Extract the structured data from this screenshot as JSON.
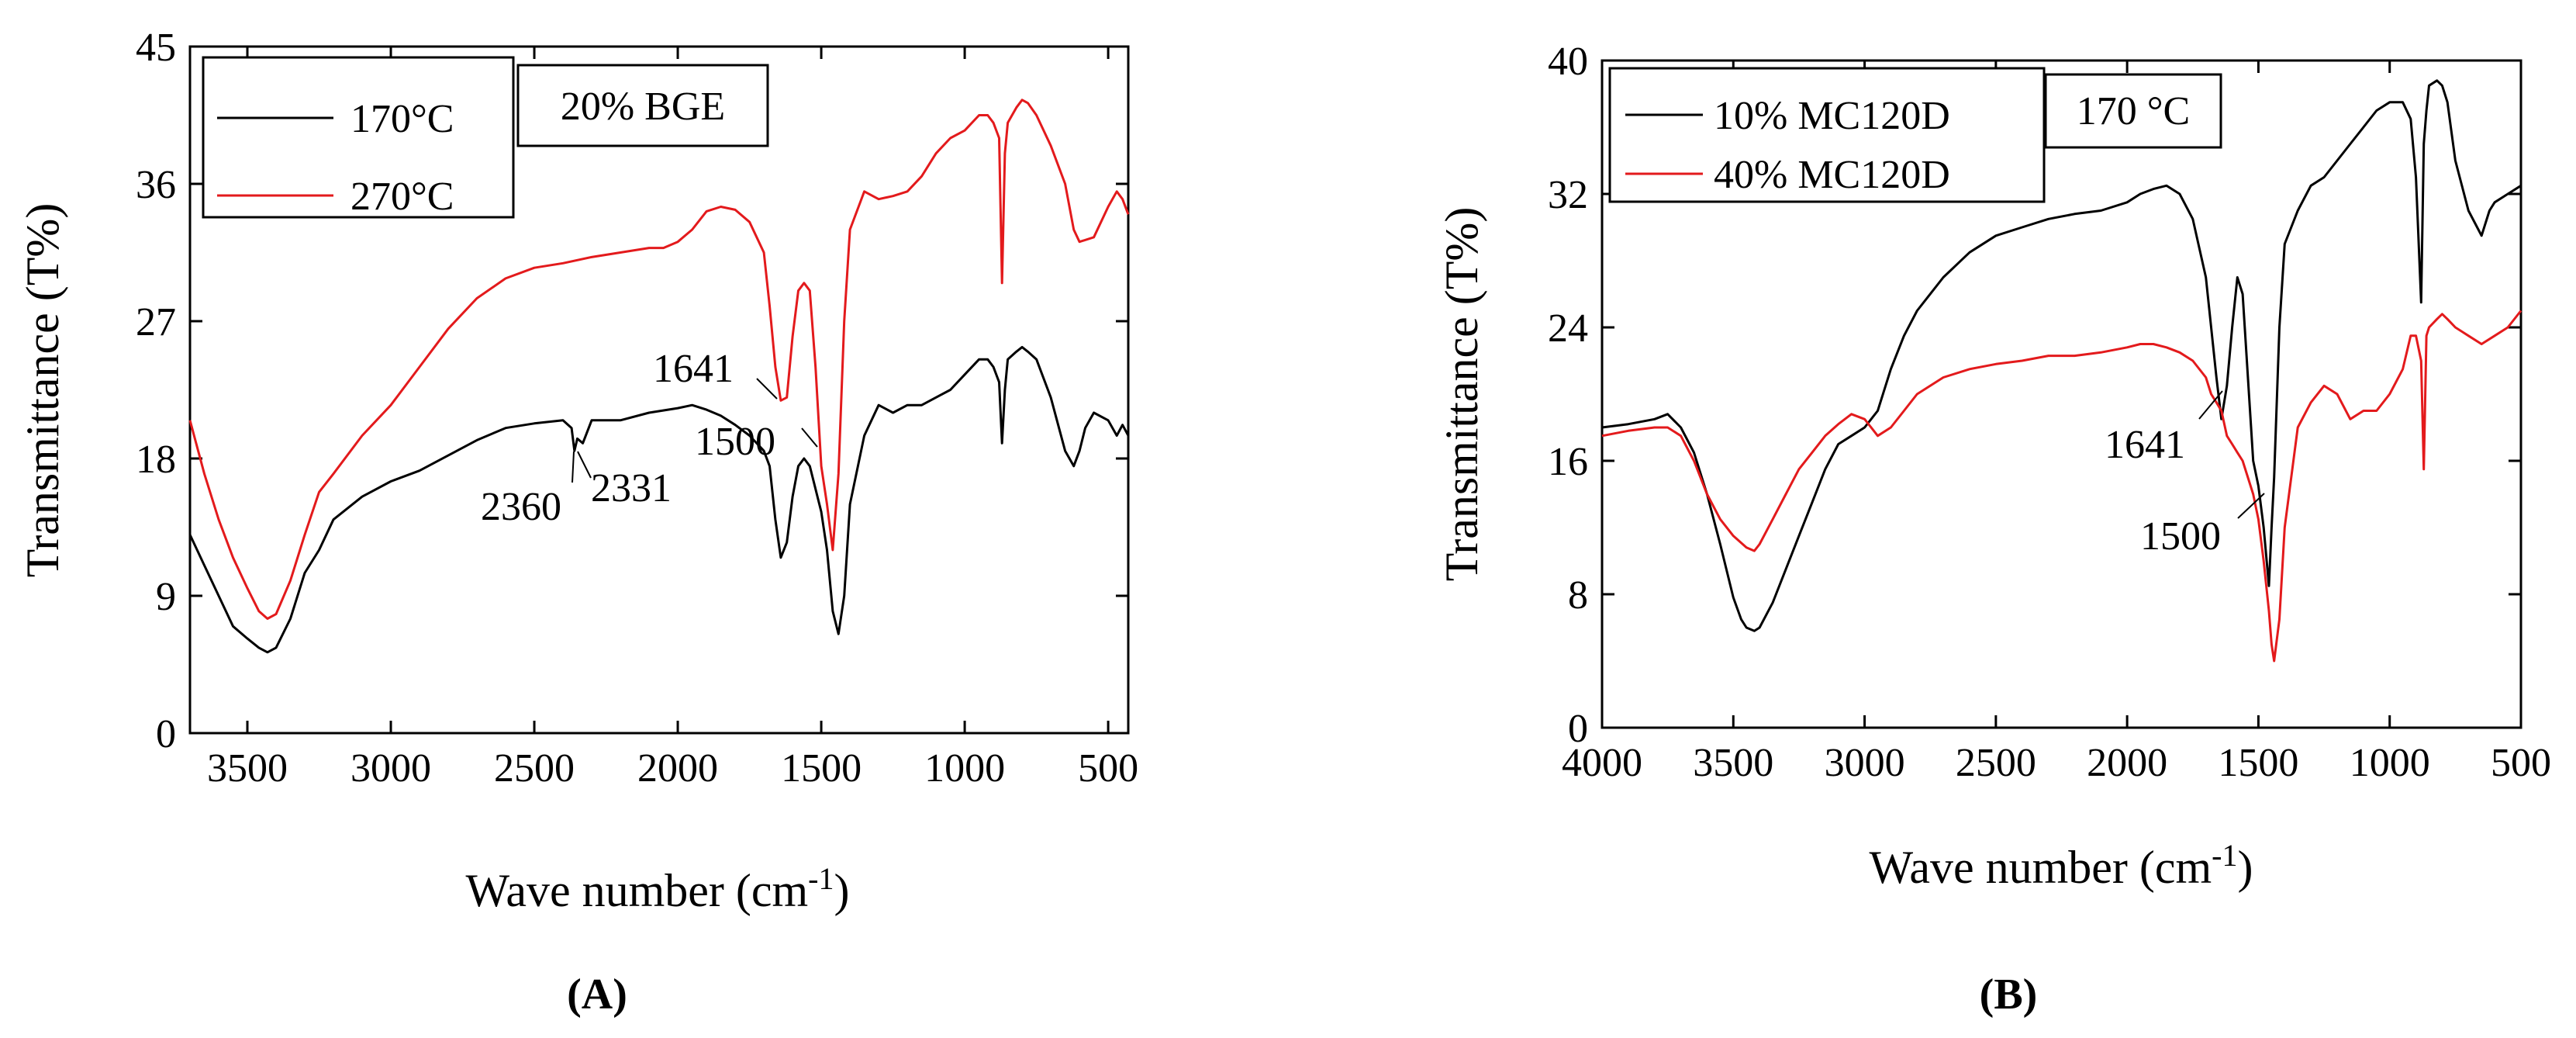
{
  "chart_data": [
    {
      "panel": "A",
      "type": "line",
      "panel_label": "(A)",
      "xlabel": "Wave number (cm",
      "xlabel_sup": "-1",
      "xlabel_close": ")",
      "ylabel": "Transmittance (T%)",
      "xlim": [
        3700,
        430
      ],
      "ylim": [
        0,
        45
      ],
      "xticks": [
        3500,
        3000,
        2500,
        2000,
        1500,
        1000,
        500
      ],
      "yticks": [
        0,
        9,
        18,
        27,
        36,
        45
      ],
      "condition_label": "20% BGE",
      "legend_position": "top-left",
      "series": [
        {
          "name": "170°C",
          "color": "#000000",
          "x": [
            3700,
            3650,
            3600,
            3550,
            3500,
            3460,
            3430,
            3400,
            3350,
            3300,
            3250,
            3200,
            3100,
            3000,
            2900,
            2800,
            2700,
            2600,
            2500,
            2400,
            2370,
            2360,
            2350,
            2331,
            2300,
            2200,
            2100,
            2000,
            1950,
            1900,
            1850,
            1800,
            1750,
            1700,
            1680,
            1660,
            1641,
            1620,
            1600,
            1580,
            1560,
            1540,
            1520,
            1500,
            1480,
            1460,
            1440,
            1420,
            1400,
            1350,
            1300,
            1250,
            1200,
            1150,
            1100,
            1050,
            1000,
            950,
            920,
            900,
            880,
            870,
            860,
            850,
            820,
            800,
            780,
            750,
            700,
            650,
            620,
            600,
            580,
            550,
            500,
            470,
            450,
            430
          ],
          "y": [
            13,
            11,
            9,
            7,
            6.2,
            5.6,
            5.3,
            5.6,
            7.5,
            10.5,
            12,
            14,
            15.5,
            16.5,
            17.2,
            18.2,
            19.2,
            20,
            20.3,
            20.5,
            20,
            18.5,
            19.3,
            19,
            20.5,
            20.5,
            21,
            21.3,
            21.5,
            21.2,
            20.8,
            20.2,
            19.5,
            18.5,
            17.5,
            14,
            11.5,
            12.5,
            15.5,
            17.5,
            18,
            17.5,
            16,
            14.5,
            12,
            8,
            6.5,
            9,
            15,
            19.5,
            21.5,
            21,
            21.5,
            21.5,
            22,
            22.5,
            23.5,
            24.5,
            24.5,
            24,
            23,
            19,
            22.5,
            24.5,
            25,
            25.3,
            25,
            24.5,
            22,
            18.5,
            17.5,
            18.5,
            20,
            21,
            20.5,
            19.5,
            20.2,
            19.5
          ]
        },
        {
          "name": "270°C",
          "color": "#e31a1c",
          "x": [
            3700,
            3650,
            3600,
            3550,
            3500,
            3460,
            3430,
            3400,
            3350,
            3300,
            3250,
            3200,
            3100,
            3000,
            2900,
            2800,
            2700,
            2600,
            2500,
            2400,
            2300,
            2200,
            2100,
            2050,
            2000,
            1950,
            1900,
            1850,
            1800,
            1750,
            1700,
            1680,
            1660,
            1641,
            1620,
            1600,
            1580,
            1560,
            1540,
            1520,
            1500,
            1480,
            1460,
            1440,
            1420,
            1400,
            1350,
            1300,
            1250,
            1200,
            1150,
            1100,
            1050,
            1000,
            950,
            920,
            900,
            880,
            870,
            860,
            850,
            820,
            800,
            780,
            750,
            700,
            650,
            620,
            600,
            550,
            500,
            470,
            450,
            430
          ],
          "y": [
            20.5,
            17,
            14,
            11.5,
            9.5,
            8,
            7.5,
            7.8,
            10,
            13,
            15.8,
            17,
            19.5,
            21.5,
            24,
            26.5,
            28.5,
            29.8,
            30.5,
            30.8,
            31.2,
            31.5,
            31.8,
            31.8,
            32.2,
            33,
            34.2,
            34.5,
            34.3,
            33.5,
            31.5,
            28,
            24,
            21.8,
            22,
            26,
            29,
            29.5,
            29,
            24,
            17.5,
            15,
            12,
            17,
            27,
            33,
            35.5,
            35,
            35.2,
            35.5,
            36.5,
            38,
            39,
            39.5,
            40.5,
            40.5,
            40,
            39,
            29.5,
            38,
            40,
            41,
            41.5,
            41.3,
            40.5,
            38.5,
            36,
            33,
            32.2,
            32.5,
            34.5,
            35.5,
            35,
            34
          ]
        }
      ],
      "annotations": [
        {
          "text": "1641"
        },
        {
          "text": "1500"
        },
        {
          "text": "2360"
        },
        {
          "text": "2331"
        }
      ]
    },
    {
      "panel": "B",
      "type": "line",
      "panel_label": "(B)",
      "xlabel": "Wave number (cm",
      "xlabel_sup": "-1",
      "xlabel_close": ")",
      "ylabel": "Transmittance (T%)",
      "xlim": [
        4000,
        500
      ],
      "ylim": [
        0,
        40
      ],
      "xticks": [
        4000,
        3500,
        3000,
        2500,
        2000,
        1500,
        1000,
        500
      ],
      "yticks": [
        0,
        8,
        16,
        24,
        32,
        40
      ],
      "condition_label": "170 °C",
      "legend_position": "top-left",
      "series": [
        {
          "name": "10% MC120D",
          "color": "#000000",
          "x": [
            4000,
            3900,
            3800,
            3750,
            3700,
            3650,
            3600,
            3550,
            3500,
            3470,
            3450,
            3420,
            3400,
            3350,
            3300,
            3250,
            3200,
            3150,
            3100,
            3050,
            3000,
            2950,
            2900,
            2850,
            2800,
            2700,
            2600,
            2500,
            2400,
            2300,
            2200,
            2100,
            2000,
            1950,
            1900,
            1850,
            1800,
            1750,
            1700,
            1680,
            1660,
            1641,
            1620,
            1600,
            1580,
            1560,
            1540,
            1520,
            1500,
            1480,
            1460,
            1450,
            1440,
            1420,
            1400,
            1350,
            1300,
            1250,
            1200,
            1150,
            1100,
            1050,
            1000,
            950,
            920,
            900,
            880,
            870,
            860,
            850,
            820,
            800,
            780,
            750,
            700,
            650,
            620,
            600,
            550,
            500
          ],
          "y": [
            18,
            18.2,
            18.5,
            18.8,
            18,
            16.5,
            14,
            11,
            7.8,
            6.5,
            6,
            5.8,
            6,
            7.5,
            9.5,
            11.5,
            13.5,
            15.5,
            17,
            17.5,
            18,
            19,
            21.5,
            23.5,
            25,
            27,
            28.5,
            29.5,
            30,
            30.5,
            30.8,
            31,
            31.5,
            32,
            32.3,
            32.5,
            32,
            30.5,
            27,
            24,
            21,
            18.5,
            20.5,
            24,
            27,
            26,
            21,
            16,
            14.5,
            12,
            8.5,
            12,
            15,
            24,
            29,
            31,
            32.5,
            33,
            34,
            35,
            36,
            37,
            37.5,
            37.5,
            36.5,
            33,
            25.5,
            35,
            37,
            38.5,
            38.8,
            38.5,
            37.5,
            34,
            31,
            29.5,
            31,
            31.5,
            32,
            32.5
          ]
        },
        {
          "name": "40% MC120D",
          "color": "#e31a1c",
          "x": [
            4000,
            3900,
            3800,
            3750,
            3700,
            3650,
            3600,
            3550,
            3500,
            3450,
            3420,
            3400,
            3350,
            3300,
            3250,
            3200,
            3150,
            3100,
            3050,
            3000,
            2950,
            2900,
            2850,
            2800,
            2700,
            2600,
            2500,
            2400,
            2300,
            2200,
            2100,
            2000,
            1950,
            1900,
            1850,
            1800,
            1750,
            1700,
            1680,
            1660,
            1641,
            1620,
            1600,
            1580,
            1560,
            1540,
            1520,
            1500,
            1480,
            1460,
            1450,
            1440,
            1420,
            1400,
            1350,
            1300,
            1250,
            1200,
            1150,
            1100,
            1050,
            1000,
            950,
            920,
            900,
            880,
            870,
            860,
            850,
            820,
            800,
            780,
            750,
            700,
            650,
            600,
            550,
            500
          ],
          "y": [
            17.5,
            17.8,
            18,
            18,
            17.5,
            16,
            14,
            12.5,
            11.5,
            10.8,
            10.6,
            11,
            12.5,
            14,
            15.5,
            16.5,
            17.5,
            18.2,
            18.8,
            18.5,
            17.5,
            18,
            19,
            20,
            21,
            21.5,
            21.8,
            22,
            22.3,
            22.3,
            22.5,
            22.8,
            23,
            23,
            22.8,
            22.5,
            22,
            21,
            20,
            19.5,
            19,
            17.5,
            17,
            16.5,
            16,
            15,
            14,
            12.5,
            10,
            7,
            5,
            4,
            6.5,
            12,
            18,
            19.5,
            20.5,
            20,
            18.5,
            19,
            19,
            20,
            21.5,
            23.5,
            23.5,
            22,
            15.5,
            23.5,
            24,
            24.5,
            24.8,
            24.5,
            24,
            23.5,
            23,
            23.5,
            24,
            25
          ]
        }
      ],
      "annotations": [
        {
          "text": "1641"
        },
        {
          "text": "1500"
        }
      ]
    }
  ]
}
